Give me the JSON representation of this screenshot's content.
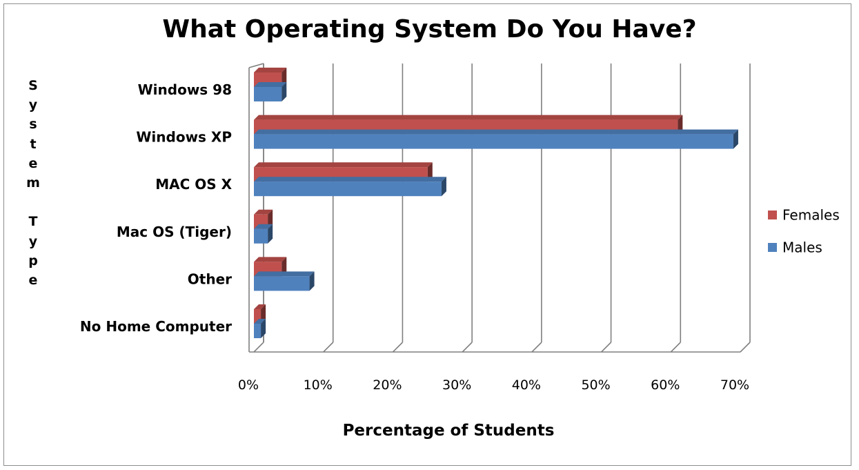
{
  "chart_data": {
    "type": "bar",
    "orientation": "horizontal",
    "title": "What Operating System Do You Have?",
    "xlabel": "Percentage of Students",
    "ylabel": "System Type",
    "xlim": [
      0,
      70
    ],
    "x_ticks": [
      "0%",
      "10%",
      "20%",
      "30%",
      "40%",
      "50%",
      "60%",
      "70%"
    ],
    "categories": [
      "Windows 98",
      "Windows XP",
      "MAC OS X",
      "Mac OS (Tiger)",
      "Other",
      "No Home Computer"
    ],
    "series": [
      {
        "name": "Females",
        "color": "#c0504d",
        "values": [
          4,
          61,
          25,
          2,
          4,
          1
        ]
      },
      {
        "name": "Males",
        "color": "#4f81bd",
        "values": [
          4,
          69,
          27,
          2,
          8,
          1
        ]
      }
    ],
    "grid": "vertical",
    "legend_position": "right"
  }
}
